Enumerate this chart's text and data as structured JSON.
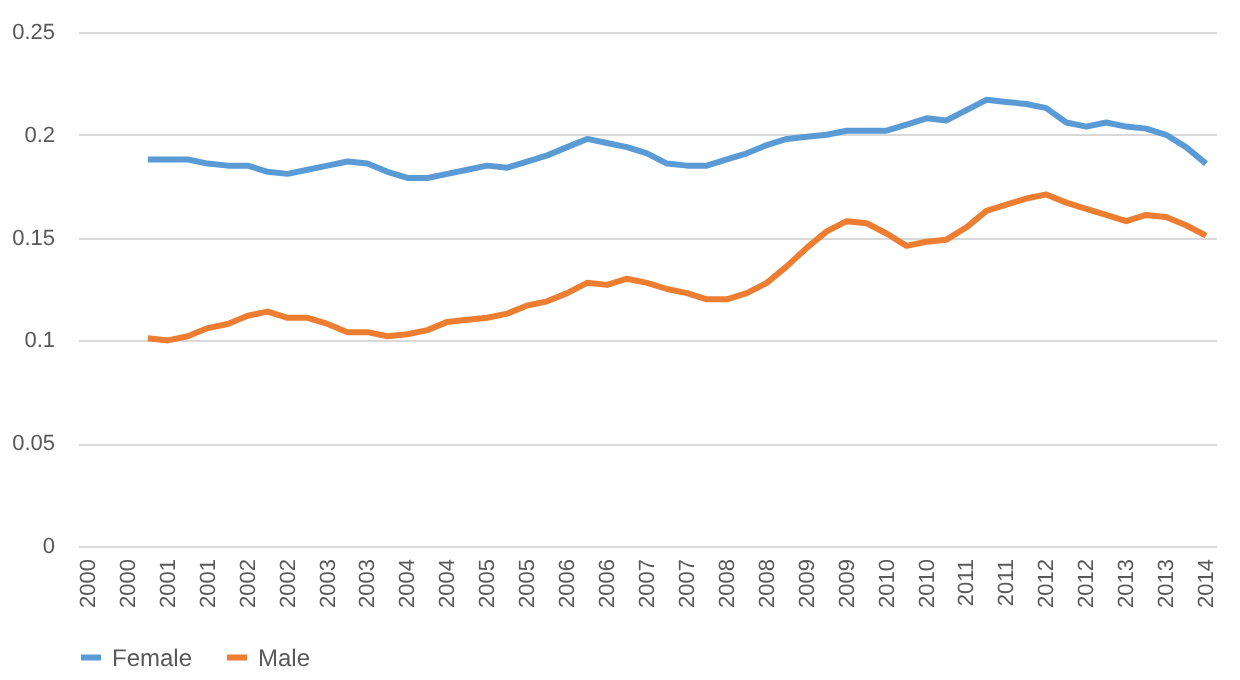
{
  "chart_data": {
    "type": "line",
    "categories": [
      "2000",
      null,
      "2000",
      null,
      "2001",
      null,
      "2001",
      null,
      "2002",
      null,
      "2002",
      null,
      "2003",
      null,
      "2003",
      null,
      "2004",
      null,
      "2004",
      null,
      "2005",
      null,
      "2005",
      null,
      "2006",
      null,
      "2006",
      null,
      "2007",
      null,
      "2007",
      null,
      "2008",
      null,
      "2008",
      null,
      "2009",
      null,
      "2009",
      null,
      "2010",
      null,
      "2010",
      null,
      "2011",
      null,
      "2011",
      null,
      "2012",
      null,
      "2012",
      null,
      "2013",
      null,
      "2013",
      null,
      "2014"
    ],
    "series": [
      {
        "name": "Female",
        "color": "#5b9bd5",
        "values": [
          null,
          null,
          null,
          0.188,
          0.188,
          0.188,
          0.186,
          0.185,
          0.185,
          0.182,
          0.181,
          0.183,
          0.185,
          0.187,
          0.186,
          0.182,
          0.179,
          0.179,
          0.181,
          0.183,
          0.185,
          0.184,
          0.187,
          0.19,
          0.194,
          0.198,
          0.196,
          0.194,
          0.191,
          0.186,
          0.185,
          0.185,
          0.188,
          0.191,
          0.195,
          0.198,
          0.199,
          0.2,
          0.202,
          0.202,
          0.202,
          0.205,
          0.208,
          0.207,
          0.212,
          0.217,
          0.216,
          0.215,
          0.213,
          0.206,
          0.204,
          0.206,
          0.204,
          0.203,
          0.2,
          0.194,
          0.186
        ]
      },
      {
        "name": "Male",
        "color": "#ed7d31",
        "values": [
          null,
          null,
          null,
          0.101,
          0.1,
          0.102,
          0.106,
          0.108,
          0.112,
          0.114,
          0.111,
          0.111,
          0.108,
          0.104,
          0.104,
          0.102,
          0.103,
          0.105,
          0.109,
          0.11,
          0.111,
          0.113,
          0.117,
          0.119,
          0.123,
          0.128,
          0.127,
          0.13,
          0.128,
          0.125,
          0.123,
          0.12,
          0.12,
          0.123,
          0.128,
          0.136,
          0.145,
          0.153,
          0.158,
          0.157,
          0.152,
          0.146,
          0.148,
          0.149,
          0.155,
          0.163,
          0.166,
          0.169,
          0.171,
          0.167,
          0.164,
          0.161,
          0.158,
          0.161,
          0.16,
          0.156,
          0.151
        ]
      }
    ],
    "ylim": [
      0,
      0.25
    ],
    "yticks": [
      0,
      0.05,
      0.1,
      0.15,
      0.2,
      0.25
    ],
    "grid": "y",
    "legend": "bottom",
    "line_style": "solid",
    "marker": "none"
  }
}
